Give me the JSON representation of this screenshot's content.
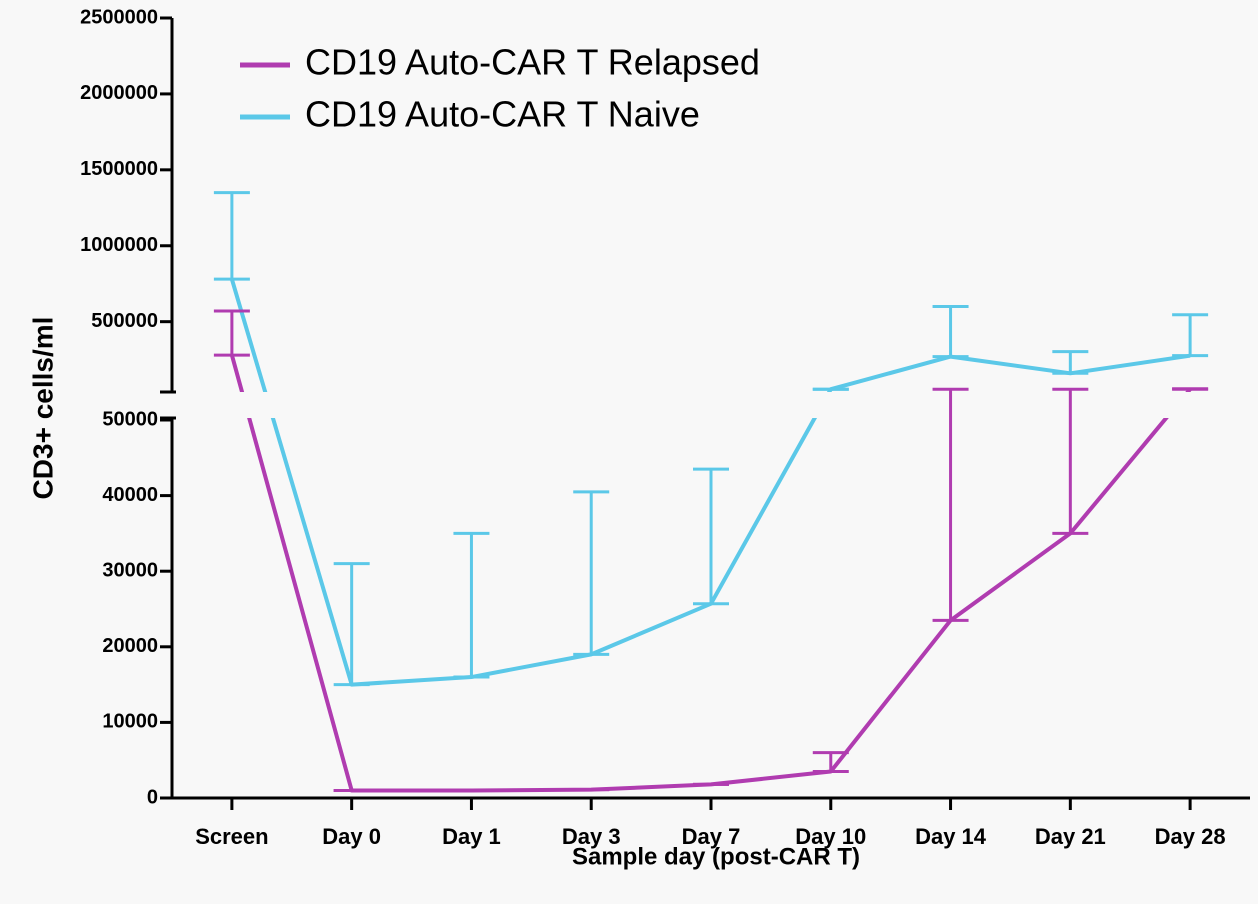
{
  "chart_data": {
    "type": "line",
    "xlabel": "Sample day (post-CAR T)",
    "ylabel": "CD3+ cells/ml",
    "categories": [
      "Screen",
      "Day 0",
      "Day 1",
      "Day 3",
      "Day 7",
      "Day 10",
      "Day 14",
      "Day 21",
      "Day 28"
    ],
    "series": [
      {
        "name": "CD19 Auto-CAR T Relapsed",
        "color": "#b03cb0",
        "values": [
          280000,
          1000,
          1000,
          1100,
          1800,
          3500,
          23500,
          35000,
          55000
        ],
        "errors": [
          290000,
          0,
          0,
          0,
          0,
          2500,
          31500,
          20000,
          3000
        ]
      },
      {
        "name": "CD19 Auto-CAR T Naive",
        "color": "#5bc8e8",
        "values": [
          780000,
          15000,
          16000,
          19000,
          25700,
          55000,
          270000,
          160000,
          276000
        ],
        "errors": [
          570000,
          16000,
          19000,
          21500,
          17800,
          0,
          330000,
          143000,
          270000
        ]
      }
    ],
    "ylim": [
      0,
      2500000
    ],
    "ybreak": 50000,
    "yticks": [
      0,
      10000,
      20000,
      30000,
      40000,
      50000,
      500000,
      1000000,
      1500000,
      2000000,
      2500000
    ],
    "legend": "top-left"
  }
}
